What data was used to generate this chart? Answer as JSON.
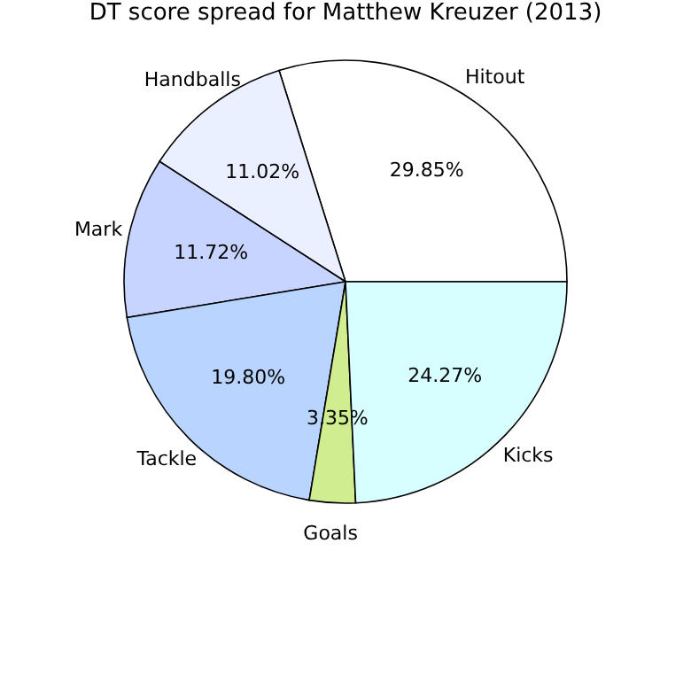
{
  "chart_data": {
    "type": "pie",
    "title": "DT score spread for Matthew Kreuzer (2013)",
    "categories": [
      "Hitout",
      "Handballs",
      "Mark",
      "Tackle",
      "Goals",
      "Kicks"
    ],
    "values": [
      29.85,
      11.02,
      11.72,
      19.8,
      3.35,
      24.27
    ],
    "value_labels": [
      "29.85%",
      "11.02%",
      "11.72%",
      "19.80%",
      "3.35%",
      "24.27%"
    ],
    "colors": [
      "#ffffff",
      "#eaf0ff",
      "#c6d4ff",
      "#b8d4ff",
      "#d0ee90",
      "#d8ffff"
    ],
    "legend": false
  }
}
